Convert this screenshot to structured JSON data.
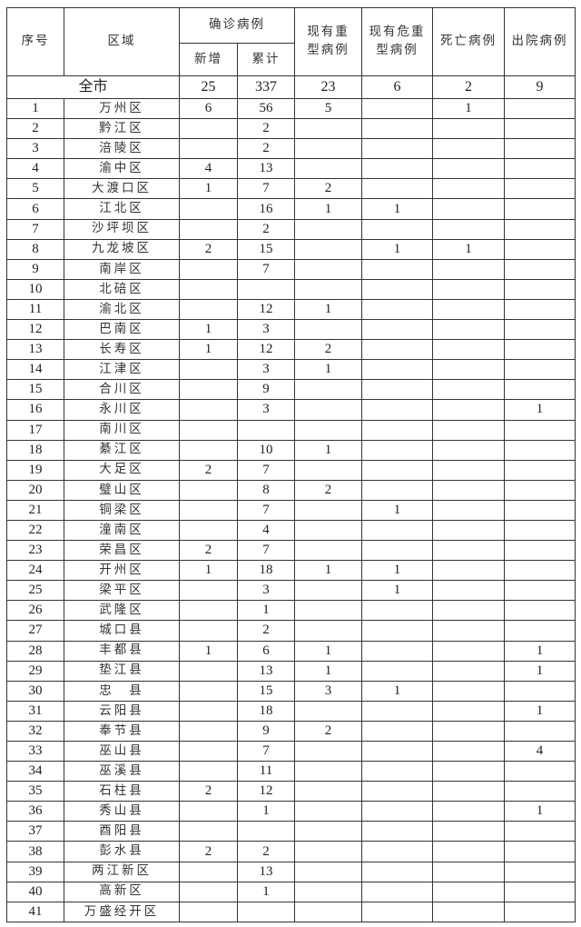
{
  "headers": {
    "no": "序号",
    "region": "区域",
    "confirmed": "确诊病例",
    "new": "新增",
    "cumulative": "累计",
    "severe": "现有重型病例",
    "critical": "现有危重型病例",
    "deaths": "死亡病例",
    "discharged": "出院病例"
  },
  "total": {
    "label": "全市",
    "new": "25",
    "cumulative": "337",
    "severe": "23",
    "critical": "6",
    "deaths": "2",
    "discharged": "9"
  },
  "rows": [
    [
      "1",
      "万州区",
      "6",
      "56",
      "5",
      "",
      "1",
      ""
    ],
    [
      "2",
      "黔江区",
      "",
      "2",
      "",
      "",
      "",
      ""
    ],
    [
      "3",
      "涪陵区",
      "",
      "2",
      "",
      "",
      "",
      ""
    ],
    [
      "4",
      "渝中区",
      "4",
      "13",
      "",
      "",
      "",
      ""
    ],
    [
      "5",
      "大渡口区",
      "1",
      "7",
      "2",
      "",
      "",
      ""
    ],
    [
      "6",
      "江北区",
      "",
      "16",
      "1",
      "1",
      "",
      ""
    ],
    [
      "7",
      "沙坪坝区",
      "",
      "2",
      "",
      "",
      "",
      ""
    ],
    [
      "8",
      "九龙坡区",
      "2",
      "15",
      "",
      "1",
      "1",
      ""
    ],
    [
      "9",
      "南岸区",
      "",
      "7",
      "",
      "",
      "",
      ""
    ],
    [
      "10",
      "北碚区",
      "",
      "",
      "",
      "",
      "",
      ""
    ],
    [
      "11",
      "渝北区",
      "",
      "12",
      "1",
      "",
      "",
      ""
    ],
    [
      "12",
      "巴南区",
      "1",
      "3",
      "",
      "",
      "",
      ""
    ],
    [
      "13",
      "长寿区",
      "1",
      "12",
      "2",
      "",
      "",
      ""
    ],
    [
      "14",
      "江津区",
      "",
      "3",
      "1",
      "",
      "",
      ""
    ],
    [
      "15",
      "合川区",
      "",
      "9",
      "",
      "",
      "",
      ""
    ],
    [
      "16",
      "永川区",
      "",
      "3",
      "",
      "",
      "",
      "1"
    ],
    [
      "17",
      "南川区",
      "",
      "",
      "",
      "",
      "",
      ""
    ],
    [
      "18",
      "綦江区",
      "",
      "10",
      "1",
      "",
      "",
      ""
    ],
    [
      "19",
      "大足区",
      "2",
      "7",
      "",
      "",
      "",
      ""
    ],
    [
      "20",
      "璧山区",
      "",
      "8",
      "2",
      "",
      "",
      ""
    ],
    [
      "21",
      "铜梁区",
      "",
      "7",
      "",
      "1",
      "",
      ""
    ],
    [
      "22",
      "潼南区",
      "",
      "4",
      "",
      "",
      "",
      ""
    ],
    [
      "23",
      "荣昌区",
      "2",
      "7",
      "",
      "",
      "",
      ""
    ],
    [
      "24",
      "开州区",
      "1",
      "18",
      "1",
      "1",
      "",
      ""
    ],
    [
      "25",
      "梁平区",
      "",
      "3",
      "",
      "1",
      "",
      ""
    ],
    [
      "26",
      "武隆区",
      "",
      "1",
      "",
      "",
      "",
      ""
    ],
    [
      "27",
      "城口县",
      "",
      "2",
      "",
      "",
      "",
      ""
    ],
    [
      "28",
      "丰都县",
      "1",
      "6",
      "1",
      "",
      "",
      "1"
    ],
    [
      "29",
      "垫江县",
      "",
      "13",
      "1",
      "",
      "",
      "1"
    ],
    [
      "30",
      "忠　县",
      "",
      "15",
      "3",
      "1",
      "",
      ""
    ],
    [
      "31",
      "云阳县",
      "",
      "18",
      "",
      "",
      "",
      "1"
    ],
    [
      "32",
      "奉节县",
      "",
      "9",
      "2",
      "",
      "",
      ""
    ],
    [
      "33",
      "巫山县",
      "",
      "7",
      "",
      "",
      "",
      "4"
    ],
    [
      "34",
      "巫溪县",
      "",
      "11",
      "",
      "",
      "",
      ""
    ],
    [
      "35",
      "石柱县",
      "2",
      "12",
      "",
      "",
      "",
      ""
    ],
    [
      "36",
      "秀山县",
      "",
      "1",
      "",
      "",
      "",
      "1"
    ],
    [
      "37",
      "酉阳县",
      "",
      "",
      "",
      "",
      "",
      ""
    ],
    [
      "38",
      "彭水县",
      "2",
      "2",
      "",
      "",
      "",
      ""
    ],
    [
      "39",
      "两江新区",
      "",
      "13",
      "",
      "",
      "",
      ""
    ],
    [
      "40",
      "高新区",
      "",
      "1",
      "",
      "",
      "",
      ""
    ],
    [
      "41",
      "万盛经开区",
      "",
      "",
      "",
      "",
      "",
      ""
    ]
  ]
}
